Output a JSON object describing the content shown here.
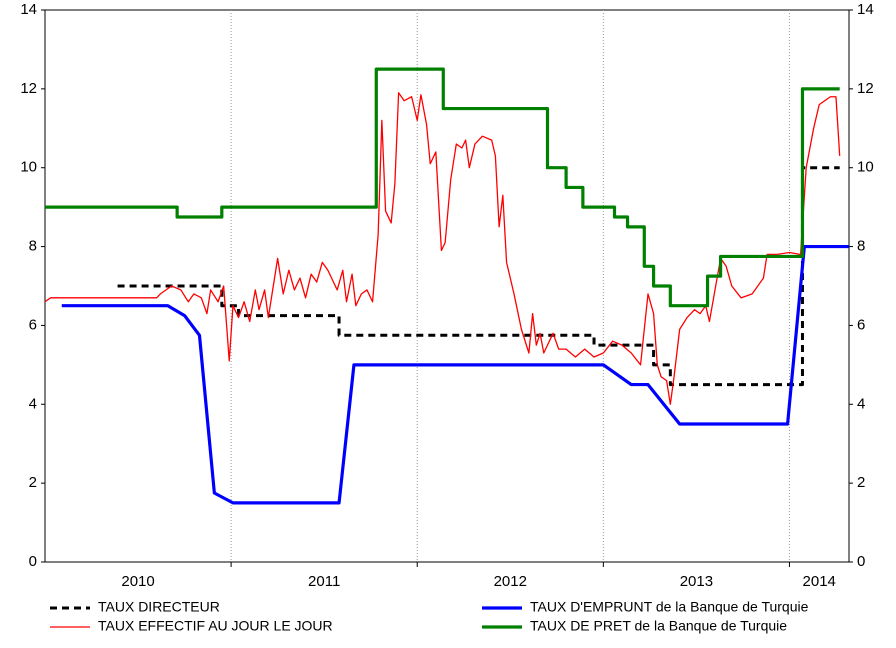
{
  "chart_data": {
    "type": "line",
    "xlim": [
      2010,
      2014.32
    ],
    "xticks": [
      {
        "value": 2010.5,
        "label": "2010"
      },
      {
        "value": 2011.5,
        "label": "2011"
      },
      {
        "value": 2012.5,
        "label": "2012"
      },
      {
        "value": 2013.5,
        "label": "2013"
      },
      {
        "value": 2014.16,
        "label": "2014"
      }
    ],
    "xgrid": [
      2011,
      2012,
      2013,
      2014
    ],
    "ylim": [
      0,
      14
    ],
    "yticks": [
      0,
      2,
      4,
      6,
      8,
      10,
      12,
      14
    ],
    "y2lim": [
      0,
      14
    ],
    "y2ticks": [
      0,
      2,
      4,
      6,
      8,
      10,
      12,
      14
    ],
    "series": [
      {
        "name": "TAUX DIRECTEUR",
        "color": "#000000",
        "style": "dashed",
        "x": [
          2010.39,
          2010.95,
          2010.95,
          2011.04,
          2011.04,
          2011.58,
          2011.58,
          2012.95,
          2012.95,
          2013.27,
          2013.27,
          2013.36,
          2013.36,
          2014.07,
          2014.07,
          2014.27
        ],
        "values": [
          7,
          7,
          6.5,
          6.5,
          6.25,
          6.25,
          5.75,
          5.75,
          5.5,
          5.5,
          5,
          5,
          4.5,
          4.5,
          10,
          10
        ]
      },
      {
        "name": "TAUX EFFECTIF AU JOUR LE JOUR",
        "color": "#ff0000",
        "style": "thin",
        "x": [
          2010.0,
          2010.03,
          2010.6,
          2010.62,
          2010.68,
          2010.73,
          2010.77,
          2010.8,
          2010.84,
          2010.87,
          2010.89,
          2010.93,
          2010.96,
          2010.99,
          2011.01,
          2011.04,
          2011.07,
          2011.1,
          2011.13,
          2011.15,
          2011.18,
          2011.2,
          2011.22,
          2011.25,
          2011.28,
          2011.31,
          2011.34,
          2011.37,
          2011.4,
          2011.43,
          2011.46,
          2011.49,
          2011.52,
          2011.54,
          2011.57,
          2011.6,
          2011.62,
          2011.65,
          2011.67,
          2011.7,
          2011.73,
          2011.76,
          2011.79,
          2011.81,
          2011.83,
          2011.86,
          2011.88,
          2011.9,
          2011.93,
          2011.97,
          2012.0,
          2012.02,
          2012.05,
          2012.07,
          2012.1,
          2012.13,
          2012.15,
          2012.18,
          2012.21,
          2012.24,
          2012.26,
          2012.28,
          2012.31,
          2012.35,
          2012.4,
          2012.42,
          2012.44,
          2012.46,
          2012.48,
          2012.52,
          2012.56,
          2012.6,
          2012.62,
          2012.64,
          2012.66,
          2012.68,
          2012.7,
          2012.73,
          2012.76,
          2012.8,
          2012.85,
          2012.9,
          2012.95,
          2013.0,
          2013.05,
          2013.1,
          2013.15,
          2013.2,
          2013.24,
          2013.27,
          2013.29,
          2013.31,
          2013.34,
          2013.36,
          2013.38,
          2013.41,
          2013.45,
          2013.49,
          2013.52,
          2013.55,
          2013.57,
          2013.6,
          2013.63,
          2013.66,
          2013.69,
          2013.74,
          2013.8,
          2013.86,
          2013.88,
          2013.93,
          2014.0,
          2014.06,
          2014.09,
          2014.13,
          2014.16,
          2014.22,
          2014.25,
          2014.27
        ],
        "values": [
          6.6,
          6.7,
          6.7,
          6.8,
          7.0,
          6.9,
          6.6,
          6.8,
          6.7,
          6.3,
          6.9,
          6.6,
          7.0,
          5.1,
          6.5,
          6.2,
          6.6,
          6.1,
          6.9,
          6.4,
          6.9,
          6.2,
          6.8,
          7.7,
          6.8,
          7.4,
          6.9,
          7.2,
          6.7,
          7.3,
          7.1,
          7.6,
          7.4,
          7.2,
          6.9,
          7.4,
          6.6,
          7.3,
          6.5,
          6.8,
          6.9,
          6.6,
          8.3,
          11.2,
          8.9,
          8.6,
          9.6,
          11.9,
          11.7,
          11.8,
          11.2,
          11.85,
          11.1,
          10.1,
          10.4,
          7.9,
          8.1,
          9.7,
          10.6,
          10.5,
          10.7,
          10.0,
          10.6,
          10.8,
          10.7,
          10.3,
          8.5,
          9.3,
          7.6,
          6.8,
          5.9,
          5.3,
          6.3,
          5.5,
          5.8,
          5.3,
          5.5,
          5.8,
          5.4,
          5.4,
          5.2,
          5.4,
          5.2,
          5.3,
          5.6,
          5.5,
          5.3,
          5.0,
          6.8,
          6.3,
          5.0,
          4.7,
          4.6,
          4.0,
          4.7,
          5.9,
          6.2,
          6.4,
          6.3,
          6.5,
          6.1,
          6.9,
          7.7,
          7.5,
          7.0,
          6.7,
          6.8,
          7.2,
          7.8,
          7.8,
          7.85,
          7.8,
          10.0,
          11.0,
          11.6,
          11.8,
          11.8,
          10.3
        ]
      },
      {
        "name": "TAUX D'EMPRUNT de la Banque de Turquie",
        "color": "#0000ff",
        "style": "solid",
        "x": [
          2010.09,
          2010.66,
          2010.75,
          2010.83,
          2010.91,
          2011.01,
          2011.58,
          2011.66,
          2013.0,
          2013.15,
          2013.24,
          2013.41,
          2013.99,
          2014.08,
          2014.32
        ],
        "values": [
          6.5,
          6.5,
          6.25,
          5.75,
          1.75,
          1.5,
          1.5,
          5,
          5,
          4.5,
          4.5,
          3.5,
          3.5,
          8,
          8
        ]
      },
      {
        "name": "TAUX DE PRET de la Banque de Turquie",
        "color": "#008000",
        "style": "solid",
        "x": [
          2010.0,
          2010.71,
          2010.71,
          2010.95,
          2010.95,
          2011.78,
          2011.78,
          2012.14,
          2012.14,
          2012.7,
          2012.7,
          2012.8,
          2012.8,
          2012.89,
          2012.89,
          2013.06,
          2013.06,
          2013.13,
          2013.13,
          2013.22,
          2013.22,
          2013.27,
          2013.27,
          2013.36,
          2013.36,
          2013.56,
          2013.56,
          2013.63,
          2013.63,
          2014.07,
          2014.07,
          2014.27
        ],
        "values": [
          9,
          9,
          8.75,
          8.75,
          9,
          9,
          12.5,
          12.5,
          11.5,
          11.5,
          10,
          10,
          9.5,
          9.5,
          9,
          9,
          8.75,
          8.75,
          8.5,
          8.5,
          7.5,
          7.5,
          7,
          7,
          6.5,
          6.5,
          7.25,
          7.25,
          7.75,
          7.75,
          12,
          12
        ]
      }
    ]
  }
}
